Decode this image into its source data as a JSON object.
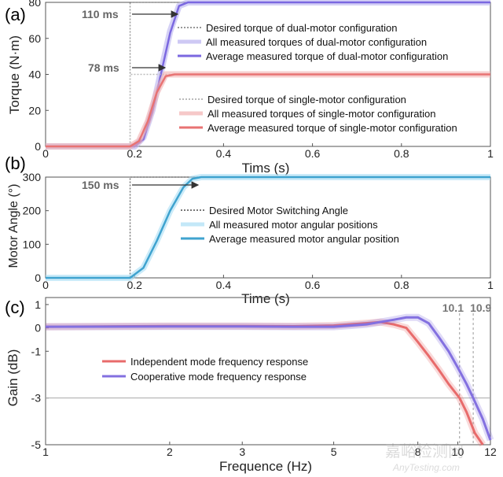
{
  "chart_data": [
    {
      "type": "line",
      "panel_label": "(a)",
      "xlabel": "Tims (s)",
      "ylabel": "Torque (N·m)",
      "xlim": [
        0,
        1
      ],
      "ylim": [
        0,
        80
      ],
      "xticks": [
        "0",
        "0.2",
        "0.4",
        "0.6",
        "0.8",
        "1"
      ],
      "yticks": [
        "0",
        "20",
        "40",
        "60",
        "80"
      ],
      "annotations": [
        {
          "text": "110 ms",
          "value_ms": 110
        },
        {
          "text": "78 ms",
          "value_ms": 78
        }
      ],
      "series": [
        {
          "name": "Desired torque of dual-motor configuration",
          "style": "dotted",
          "color": "#999999",
          "x": [
            0,
            0.19,
            0.19,
            0.3,
            0.3,
            1.0
          ],
          "y": [
            0,
            0,
            80,
            80,
            80,
            80
          ]
        },
        {
          "name": "All measured torques of dual-motor configuration",
          "style": "band",
          "color": "#b9b2f0",
          "x": [
            0,
            0.2,
            0.22,
            0.24,
            0.26,
            0.28,
            0.3,
            0.32,
            1.0
          ],
          "y": [
            0,
            0,
            5,
            20,
            42,
            64,
            78,
            80,
            80
          ]
        },
        {
          "name": "Average measured torque of dual-motor configuration",
          "style": "solid",
          "color": "#7b68e0",
          "x": [
            0,
            0.2,
            0.22,
            0.24,
            0.26,
            0.28,
            0.3,
            0.32,
            1.0
          ],
          "y": [
            0,
            0,
            4,
            19,
            41,
            63,
            78,
            80,
            80
          ]
        },
        {
          "name": "Desired torque of single-motor configuration",
          "style": "dotted",
          "color": "#bbbbbb",
          "x": [
            0,
            0.19,
            0.19,
            0.27,
            0.27,
            1.0
          ],
          "y": [
            0,
            0,
            40,
            40,
            40,
            40
          ]
        },
        {
          "name": "All measured torques of single-motor configuration",
          "style": "band",
          "color": "#f2b0b0",
          "x": [
            0,
            0.19,
            0.21,
            0.23,
            0.25,
            0.27,
            0.29,
            1.0
          ],
          "y": [
            0,
            0,
            3,
            14,
            30,
            40,
            40,
            40
          ]
        },
        {
          "name": "Average measured torque of single-motor configuration",
          "style": "solid",
          "color": "#e87373",
          "x": [
            0,
            0.19,
            0.21,
            0.23,
            0.25,
            0.27,
            0.29,
            1.0
          ],
          "y": [
            0,
            0,
            3,
            14,
            30,
            39,
            40,
            40
          ]
        }
      ]
    },
    {
      "type": "line",
      "panel_label": "(b)",
      "xlabel": "Time (s)",
      "ylabel": "Motor Angle (°)",
      "xlim": [
        0,
        1
      ],
      "ylim": [
        0,
        300
      ],
      "xticks": [
        "0",
        "0.2",
        "0.4",
        "0.6",
        "0.8",
        "1"
      ],
      "yticks": [
        "0",
        "100",
        "200",
        "300"
      ],
      "annotations": [
        {
          "text": "150 ms",
          "value_ms": 150
        }
      ],
      "series": [
        {
          "name": "Desired Motor Switching Angle",
          "style": "dotted",
          "color": "#777777",
          "x": [
            0,
            0.19,
            0.19,
            0.34,
            0.34,
            1.0
          ],
          "y": [
            0,
            0,
            300,
            300,
            300,
            300
          ]
        },
        {
          "name": "All measured motor angular positions",
          "style": "band",
          "color": "#a9def5",
          "x": [
            0,
            0.19,
            0.22,
            0.25,
            0.28,
            0.31,
            0.33,
            0.35,
            1.0
          ],
          "y": [
            0,
            0,
            30,
            110,
            200,
            270,
            295,
            300,
            300
          ]
        },
        {
          "name": "Average measured motor angular position",
          "style": "solid",
          "color": "#3fa3cf",
          "x": [
            0,
            0.19,
            0.22,
            0.25,
            0.28,
            0.31,
            0.33,
            0.35,
            1.0
          ],
          "y": [
            0,
            0,
            30,
            110,
            200,
            270,
            295,
            300,
            300
          ]
        }
      ]
    },
    {
      "type": "line",
      "panel_label": "(c)",
      "xlabel": "Frequence (Hz)",
      "ylabel": "Gain (dB)",
      "xscale": "log",
      "xlim": [
        1,
        12
      ],
      "ylim": [
        -5,
        1.3
      ],
      "xticks": [
        "1",
        "2",
        "3",
        "5",
        "8",
        "10",
        "12"
      ],
      "yticks": [
        "1",
        "0",
        "-1",
        "-3",
        "-5"
      ],
      "reference_lines": [
        {
          "y": -3
        }
      ],
      "markers": [
        {
          "text": "10.1",
          "x": 10.1
        },
        {
          "text": "10.9",
          "x": 10.9
        }
      ],
      "series": [
        {
          "name": "Independent mode frequency response",
          "style": "solid",
          "color": "#e86b6b",
          "x": [
            1,
            2,
            3,
            4,
            5,
            6,
            6.5,
            7,
            7.5,
            8,
            8.5,
            9,
            9.5,
            10.1,
            10.5,
            11,
            11.5
          ],
          "y": [
            0.05,
            0.08,
            0.08,
            0.07,
            0.1,
            0.2,
            0.25,
            0.15,
            0,
            -0.6,
            -1.2,
            -1.8,
            -2.4,
            -3.0,
            -3.6,
            -4.5,
            -5.0
          ]
        },
        {
          "name": "Cooperative mode frequency response",
          "style": "solid",
          "color": "#8370e0",
          "x": [
            1,
            2,
            3,
            4,
            5,
            6,
            7,
            7.5,
            8,
            8.5,
            9,
            9.5,
            10,
            10.5,
            10.9,
            11.5,
            12
          ],
          "y": [
            0.05,
            0.06,
            0.06,
            0.05,
            0.05,
            0.15,
            0.35,
            0.45,
            0.45,
            0.2,
            -0.4,
            -1.0,
            -1.7,
            -2.4,
            -3.0,
            -3.9,
            -4.8
          ]
        }
      ]
    }
  ],
  "watermark": {
    "line1": "嘉峪检测网",
    "line2": "AnyTesting.com"
  }
}
